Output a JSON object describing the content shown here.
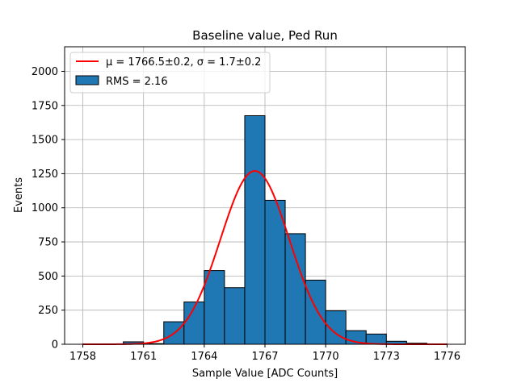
{
  "chart_data": {
    "type": "bar",
    "title": "Baseline value, Ped Run",
    "xlabel": "Sample Value [ADC Counts]",
    "ylabel": "Events",
    "xlim": [
      1757.1,
      1776.9
    ],
    "ylim": [
      0,
      2180
    ],
    "xticks": [
      1758,
      1761,
      1764,
      1767,
      1770,
      1773,
      1776
    ],
    "xtick_labels": [
      "1758",
      "1761",
      "1764",
      "1767",
      "1770",
      "1773",
      "1776"
    ],
    "yticks": [
      0,
      250,
      500,
      750,
      1000,
      1250,
      1500,
      1750,
      2000
    ],
    "ytick_labels": [
      "0",
      "250",
      "500",
      "750",
      "1000",
      "1250",
      "1500",
      "1750",
      "2000"
    ],
    "grid": true,
    "legend_position": "top-left",
    "bar_color": "#1f77b4",
    "fit_color": "#ff0000",
    "bins": [
      {
        "left": 1758.0,
        "right": 1759.0,
        "count": 2
      },
      {
        "left": 1759.0,
        "right": 1760.0,
        "count": 3
      },
      {
        "left": 1760.0,
        "right": 1761.0,
        "count": 18
      },
      {
        "left": 1761.0,
        "right": 1762.0,
        "count": 5
      },
      {
        "left": 1762.0,
        "right": 1763.0,
        "count": 165
      },
      {
        "left": 1763.0,
        "right": 1764.0,
        "count": 310
      },
      {
        "left": 1764.0,
        "right": 1765.0,
        "count": 540
      },
      {
        "left": 1765.0,
        "right": 1766.0,
        "count": 415
      },
      {
        "left": 1766.0,
        "right": 1767.0,
        "count": 1675
      },
      {
        "left": 1767.0,
        "right": 1768.0,
        "count": 1055
      },
      {
        "left": 1768.0,
        "right": 1769.0,
        "count": 810
      },
      {
        "left": 1769.0,
        "right": 1770.0,
        "count": 470
      },
      {
        "left": 1770.0,
        "right": 1771.0,
        "count": 245
      },
      {
        "left": 1771.0,
        "right": 1772.0,
        "count": 100
      },
      {
        "left": 1772.0,
        "right": 1773.0,
        "count": 75
      },
      {
        "left": 1773.0,
        "right": 1774.0,
        "count": 22
      },
      {
        "left": 1774.0,
        "right": 1775.0,
        "count": 8
      },
      {
        "left": 1775.0,
        "right": 1776.0,
        "count": 2
      }
    ],
    "fit": {
      "type": "gaussian",
      "mu": 1766.5,
      "sigma": 1.7,
      "amplitude": 1270,
      "x_range": [
        1758,
        1776
      ]
    },
    "legend": [
      {
        "label": "μ = 1766.5±0.2, σ = 1.7±0.2",
        "kind": "line",
        "color": "#ff0000"
      },
      {
        "label": "RMS = 2.16",
        "kind": "patch",
        "color": "#1f77b4"
      }
    ]
  }
}
